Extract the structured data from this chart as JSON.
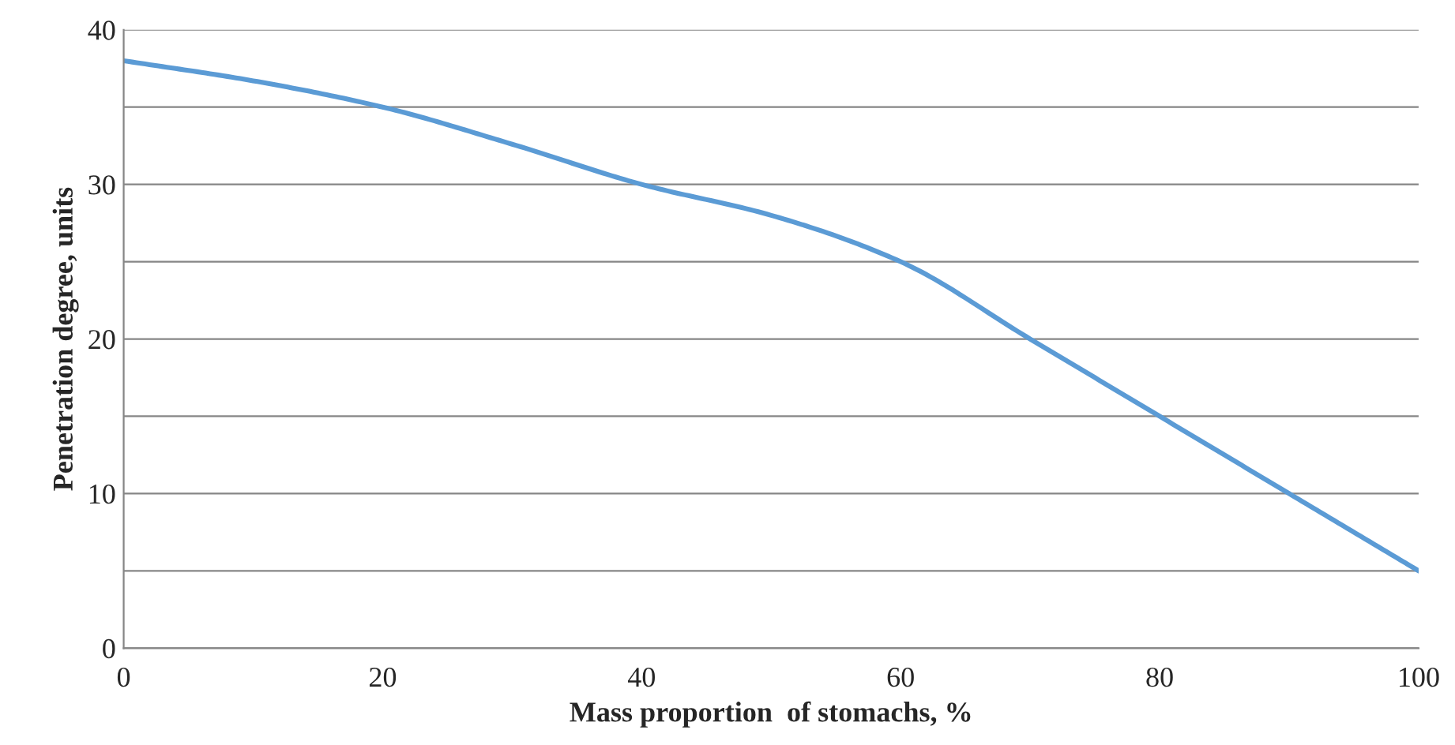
{
  "chart_data": {
    "type": "line",
    "xlabel": "Mass proportion  of stomachs, %",
    "ylabel": "Penetration degree, units",
    "x": [
      0,
      10,
      20,
      30,
      40,
      50,
      60,
      70,
      80,
      90,
      100
    ],
    "series": [
      {
        "color": "#5b9bd5",
        "values": [
          38,
          36.7,
          35,
          32.6,
          30,
          28,
          25,
          20,
          15,
          10,
          5
        ]
      }
    ],
    "xlim": [
      0,
      100
    ],
    "xticks": [
      0,
      20,
      40,
      60,
      80,
      100
    ],
    "ylim": [
      0,
      40
    ],
    "yticks": [
      0,
      {
        "value": 5,
        "label": null
      },
      10,
      {
        "value": 15,
        "label": null
      },
      20,
      {
        "value": 25,
        "label": null
      },
      30,
      {
        "value": 35,
        "label": null
      },
      40
    ],
    "grid": "y",
    "marker": "none",
    "line_style": "solid"
  }
}
